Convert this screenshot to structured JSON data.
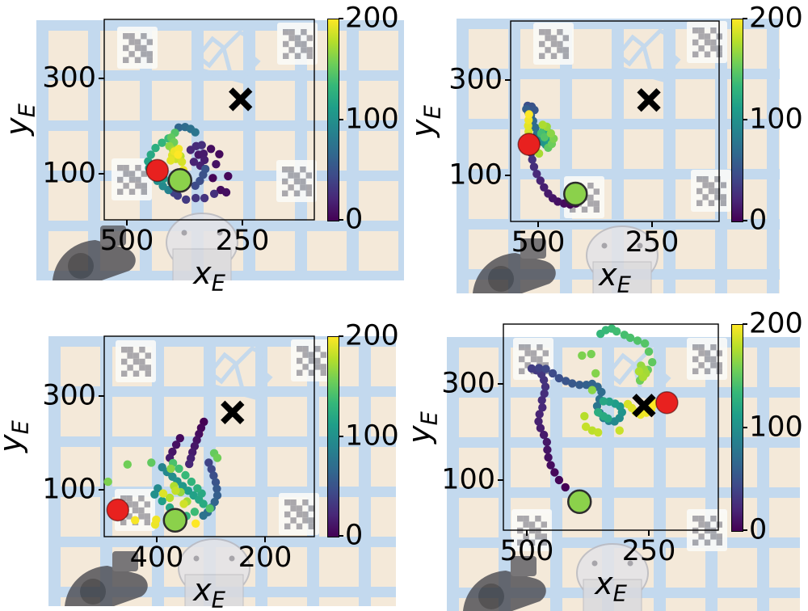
{
  "colors": {
    "viridis_min": "#440154",
    "viridis_mid": "#21918c",
    "viridis_max": "#fde725",
    "red_marker": "#e8211f",
    "green_marker": "#8bd14b",
    "goal_marker": "#000000",
    "tape_blue": "#c3d9ee",
    "wood": "#f4e9d9",
    "aruco_gray": "#a2a2a8"
  },
  "colorbar": {
    "min": 0,
    "max": 200,
    "tick_labels": [
      "0",
      "100",
      "200"
    ]
  },
  "chart_data": [
    {
      "id": "top-left",
      "type": "scatter",
      "xlabel_base": "x",
      "xlabel_sub": "E",
      "ylabel_base": "y",
      "ylabel_sub": "E",
      "x_ticks": [
        {
          "label": "500",
          "value": 500
        },
        {
          "label": "250",
          "value": 250
        }
      ],
      "y_ticks": [
        {
          "label": "300",
          "value": 300
        },
        {
          "label": "100",
          "value": 100
        }
      ],
      "xlim": [
        550,
        95
      ],
      "ylim": [
        5,
        425
      ],
      "x_axis_inverted": true,
      "colorbar_range": [
        0,
        200
      ],
      "start_marker": {
        "x": 385,
        "y": 86
      },
      "end_marker": {
        "x": 434,
        "y": 107
      },
      "goal_marker": {
        "x": 254,
        "y": 256
      },
      "points": [
        [
          314,
          91,
          2
        ],
        [
          281,
          95,
          4
        ],
        [
          297,
          66,
          6
        ],
        [
          285,
          61,
          8
        ],
        [
          300,
          141,
          5
        ],
        [
          318,
          152,
          7
        ],
        [
          307,
          120,
          9
        ],
        [
          345,
          140,
          12
        ],
        [
          334,
          142,
          14
        ],
        [
          332,
          129,
          16
        ],
        [
          341,
          117,
          18
        ],
        [
          355,
          125,
          20
        ],
        [
          362,
          150,
          22
        ],
        [
          350,
          158,
          24
        ],
        [
          338,
          160,
          26
        ],
        [
          311,
          58,
          28
        ],
        [
          332,
          49,
          30
        ],
        [
          351,
          49,
          32
        ],
        [
          372,
          46,
          34
        ],
        [
          390,
          54,
          36
        ],
        [
          398,
          60,
          38
        ],
        [
          352,
          75,
          45
        ],
        [
          342,
          85,
          48
        ],
        [
          335,
          98,
          50
        ],
        [
          330,
          110,
          52
        ],
        [
          388,
          197,
          66
        ],
        [
          374,
          198,
          70
        ],
        [
          362,
          194,
          74
        ],
        [
          352,
          187,
          78
        ],
        [
          410,
          66,
          90
        ],
        [
          422,
          74,
          95
        ],
        [
          434,
          85,
          100
        ],
        [
          404,
          82,
          104
        ],
        [
          444,
          98,
          105
        ],
        [
          420,
          90,
          108
        ],
        [
          452,
          112,
          110
        ],
        [
          428,
          100,
          112
        ],
        [
          454,
          126,
          115
        ],
        [
          448,
          140,
          120
        ],
        [
          438,
          154,
          125
        ],
        [
          424,
          165,
          130
        ],
        [
          410,
          174,
          135
        ],
        [
          396,
          186,
          145
        ],
        [
          404,
          176,
          150
        ],
        [
          398,
          166,
          155
        ],
        [
          408,
          158,
          165
        ],
        [
          400,
          150,
          170
        ],
        [
          391,
          143,
          175
        ],
        [
          384,
          137,
          180
        ],
        [
          394,
          131,
          185
        ],
        [
          381,
          125,
          188
        ],
        [
          402,
          139,
          190
        ],
        [
          405,
          128,
          192
        ],
        [
          378,
          108,
          194
        ],
        [
          397,
          147,
          195
        ],
        [
          390,
          100,
          196
        ],
        [
          388,
          152,
          197
        ],
        [
          389,
          140,
          200
        ]
      ]
    },
    {
      "id": "top-right",
      "type": "scatter",
      "xlabel_base": "x",
      "xlabel_sub": "E",
      "ylabel_base": "y",
      "ylabel_sub": "E",
      "x_ticks": [
        {
          "label": "500",
          "value": 500
        },
        {
          "label": "250",
          "value": 250
        }
      ],
      "y_ticks": [
        {
          "label": "300",
          "value": 300
        },
        {
          "label": "100",
          "value": 100
        }
      ],
      "xlim": [
        560,
        105
      ],
      "ylim": [
        5,
        425
      ],
      "x_axis_inverted": true,
      "colorbar_range": [
        0,
        200
      ],
      "start_marker": {
        "x": 418,
        "y": 61
      },
      "end_marker": {
        "x": 520,
        "y": 165
      },
      "goal_marker": {
        "x": 257,
        "y": 258
      },
      "points": [
        [
          417,
          41,
          0
        ],
        [
          430,
          39,
          2
        ],
        [
          443,
          41,
          5
        ],
        [
          457,
          45,
          8
        ],
        [
          468,
          52,
          11
        ],
        [
          478,
          62,
          14
        ],
        [
          487,
          75,
          17
        ],
        [
          495,
          89,
          20
        ],
        [
          503,
          103,
          23
        ],
        [
          509,
          118,
          26
        ],
        [
          513,
          133,
          29
        ],
        [
          515,
          147,
          32
        ],
        [
          517,
          158,
          35
        ],
        [
          519,
          240,
          45
        ],
        [
          523,
          246,
          48
        ],
        [
          514,
          244,
          51
        ],
        [
          508,
          237,
          54
        ],
        [
          521,
          231,
          57
        ],
        [
          526,
          239,
          60
        ],
        [
          516,
          225,
          63
        ],
        [
          511,
          214,
          68
        ],
        [
          506,
          200,
          72
        ],
        [
          502,
          188,
          76
        ],
        [
          497,
          178,
          95
        ],
        [
          490,
          170,
          100
        ],
        [
          483,
          164,
          105
        ],
        [
          477,
          172,
          110
        ],
        [
          473,
          182,
          115
        ],
        [
          479,
          191,
          120
        ],
        [
          487,
          196,
          125
        ],
        [
          493,
          188,
          140
        ],
        [
          486,
          180,
          145
        ],
        [
          478,
          158,
          150
        ],
        [
          470,
          166,
          155
        ],
        [
          466,
          177,
          160
        ],
        [
          472,
          188,
          165
        ],
        [
          481,
          202,
          170
        ],
        [
          490,
          206,
          175
        ],
        [
          498,
          146,
          174
        ],
        [
          506,
          152,
          176
        ],
        [
          512,
          160,
          178
        ],
        [
          519,
          168,
          180
        ],
        [
          520,
          180,
          184
        ],
        [
          521,
          192,
          188
        ],
        [
          522,
          204,
          192
        ],
        [
          521,
          216,
          196
        ],
        [
          520,
          228,
          200
        ]
      ]
    },
    {
      "id": "bottom-left",
      "type": "scatter",
      "xlabel_base": "x",
      "xlabel_sub": "E",
      "ylabel_base": "y",
      "ylabel_sub": "E",
      "x_ticks": [
        {
          "label": "400",
          "value": 400
        },
        {
          "label": "200",
          "value": 200
        }
      ],
      "y_ticks": [
        {
          "label": "300",
          "value": 300
        },
        {
          "label": "100",
          "value": 100
        }
      ],
      "xlim": [
        495,
        110
      ],
      "ylim": [
        0,
        430
      ],
      "x_axis_inverted": true,
      "colorbar_range": [
        0,
        200
      ],
      "start_marker": {
        "x": 366,
        "y": 35
      },
      "end_marker": {
        "x": 472,
        "y": 57
      },
      "goal_marker": {
        "x": 260,
        "y": 265
      },
      "points": [
        [
          313,
          245,
          0
        ],
        [
          318,
          232,
          3
        ],
        [
          322,
          219,
          6
        ],
        [
          326,
          206,
          9
        ],
        [
          330,
          193,
          12
        ],
        [
          334,
          180,
          15
        ],
        [
          337,
          167,
          18
        ],
        [
          340,
          155,
          21
        ],
        [
          357,
          210,
          5
        ],
        [
          364,
          196,
          8
        ],
        [
          371,
          181,
          11
        ],
        [
          376,
          168,
          14
        ],
        [
          304,
          158,
          40
        ],
        [
          299,
          144,
          44
        ],
        [
          295,
          130,
          48
        ],
        [
          291,
          116,
          52
        ],
        [
          289,
          102,
          56
        ],
        [
          288,
          88,
          60
        ],
        [
          293,
          74,
          64
        ],
        [
          299,
          62,
          68
        ],
        [
          306,
          52,
          72
        ],
        [
          314,
          45,
          76
        ],
        [
          390,
          148,
          90
        ],
        [
          398,
          103,
          95
        ],
        [
          381,
          138,
          94
        ],
        [
          371,
          128,
          98
        ],
        [
          362,
          118,
          102
        ],
        [
          404,
          90,
          100
        ],
        [
          352,
          108,
          106
        ],
        [
          342,
          98,
          110
        ],
        [
          390,
          76,
          112
        ],
        [
          332,
          88,
          114
        ],
        [
          322,
          79,
          118
        ],
        [
          376,
          62,
          118
        ],
        [
          314,
          70,
          122
        ],
        [
          361,
          50,
          124
        ],
        [
          325,
          103,
          126
        ],
        [
          345,
          44,
          130
        ],
        [
          336,
          117,
          130
        ],
        [
          347,
          131,
          134
        ],
        [
          330,
          53,
          136
        ],
        [
          359,
          145,
          138
        ],
        [
          370,
          157,
          142
        ],
        [
          317,
          92,
          120
        ],
        [
          410,
          158,
          150
        ],
        [
          454,
          154,
          156
        ],
        [
          490,
          117,
          160
        ],
        [
          294,
          178,
          152
        ],
        [
          288,
          168,
          156
        ],
        [
          302,
          60,
          146
        ],
        [
          374,
          145,
          164
        ],
        [
          356,
          95,
          168
        ],
        [
          344,
          75,
          172
        ],
        [
          368,
          108,
          176
        ],
        [
          403,
          26,
          194
        ],
        [
          440,
          35,
          198
        ],
        [
          388,
          92,
          190
        ],
        [
          328,
          28,
          200
        ],
        [
          350,
          70,
          186
        ],
        [
          365,
          98,
          182
        ],
        [
          376,
          83,
          178
        ],
        [
          401,
          36,
          196
        ]
      ]
    },
    {
      "id": "bottom-right",
      "type": "scatter",
      "xlabel_base": "x",
      "xlabel_sub": "E",
      "ylabel_base": "y",
      "ylabel_sub": "E",
      "x_ticks": [
        {
          "label": "500",
          "value": 500
        },
        {
          "label": "250",
          "value": 250
        }
      ],
      "y_ticks": [
        {
          "label": "300",
          "value": 300
        },
        {
          "label": "100",
          "value": 100
        }
      ],
      "xlim": [
        550,
        110
      ],
      "ylim": [
        -5,
        425
      ],
      "x_axis_inverted": true,
      "colorbar_range": [
        0,
        200
      ],
      "start_marker": {
        "x": 392,
        "y": 55
      },
      "end_marker": {
        "x": 213,
        "y": 261
      },
      "goal_marker": {
        "x": 260,
        "y": 255
      },
      "points": [
        [
          421,
          85,
          0
        ],
        [
          434,
          100,
          2
        ],
        [
          443,
          116,
          4
        ],
        [
          451,
          131,
          6
        ],
        [
          456,
          147,
          8
        ],
        [
          458,
          163,
          10
        ],
        [
          459,
          179,
          12
        ],
        [
          465,
          194,
          14
        ],
        [
          472,
          208,
          16
        ],
        [
          476,
          222,
          18
        ],
        [
          474,
          237,
          20
        ],
        [
          468,
          251,
          22
        ],
        [
          469,
          266,
          24
        ],
        [
          464,
          280,
          26
        ],
        [
          462,
          294,
          28
        ],
        [
          465,
          308,
          30
        ],
        [
          470,
          320,
          32
        ],
        [
          480,
          328,
          34
        ],
        [
          490,
          332,
          36
        ],
        [
          475,
          333,
          40
        ],
        [
          461,
          331,
          43
        ],
        [
          447,
          322,
          46
        ],
        [
          434,
          312,
          49
        ],
        [
          420,
          306,
          52
        ],
        [
          407,
          301,
          55
        ],
        [
          392,
          298,
          58
        ],
        [
          378,
          298,
          61
        ],
        [
          366,
          300,
          64
        ],
        [
          355,
          294,
          67
        ],
        [
          347,
          283,
          70
        ],
        [
          351,
          268,
          74
        ],
        [
          356,
          254,
          78
        ],
        [
          351,
          240,
          82
        ],
        [
          343,
          229,
          86
        ],
        [
          332,
          223,
          90
        ],
        [
          320,
          222,
          94
        ],
        [
          310,
          229,
          98
        ],
        [
          305,
          241,
          102
        ],
        [
          309,
          253,
          106
        ],
        [
          319,
          259,
          110
        ],
        [
          331,
          263,
          114
        ],
        [
          343,
          264,
          118
        ],
        [
          334,
          228,
          120
        ],
        [
          343,
          233,
          122
        ],
        [
          354,
          241,
          124
        ],
        [
          349,
          404,
          132
        ],
        [
          338,
          412,
          134
        ],
        [
          326,
          415,
          136
        ],
        [
          316,
          409,
          138
        ],
        [
          300,
          402,
          140
        ],
        [
          288,
          396,
          142
        ],
        [
          273,
          390,
          144
        ],
        [
          258,
          384,
          146
        ],
        [
          250,
          367,
          148
        ],
        [
          243,
          345,
          150
        ],
        [
          252,
          329,
          152
        ],
        [
          263,
          315,
          154
        ],
        [
          268,
          307,
          156
        ],
        [
          368,
          362,
          158
        ],
        [
          387,
          359,
          160
        ],
        [
          359,
          322,
          162
        ],
        [
          366,
          287,
          164
        ],
        [
          266,
          338,
          168
        ],
        [
          260,
          330,
          170
        ],
        [
          256,
          322,
          172
        ],
        [
          262,
          314,
          174
        ],
        [
          270,
          326,
          176
        ],
        [
          382,
          233,
          178
        ],
        [
          366,
          203,
          180
        ],
        [
          354,
          199,
          182
        ],
        [
          310,
          203,
          184
        ],
        [
          379,
          211,
          183
        ],
        [
          293,
          258,
          188
        ],
        [
          285,
          250,
          190
        ],
        [
          277,
          242,
          192
        ],
        [
          267,
          236,
          194
        ],
        [
          255,
          240,
          196
        ],
        [
          245,
          248,
          198
        ],
        [
          240,
          257,
          200
        ],
        [
          243,
          263,
          199
        ]
      ]
    }
  ]
}
